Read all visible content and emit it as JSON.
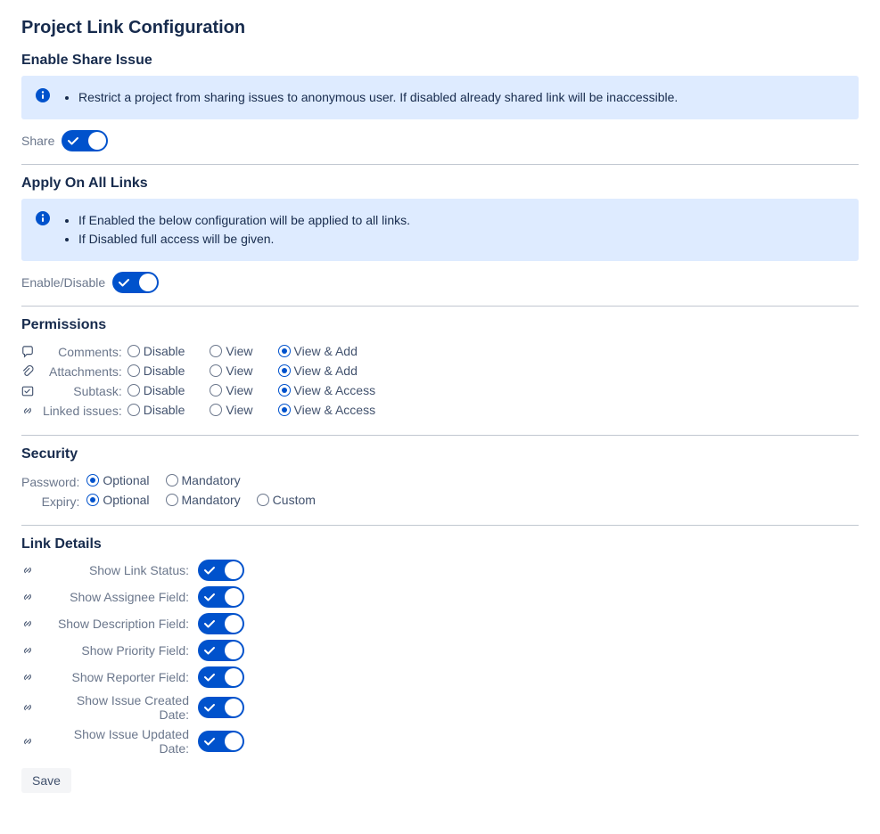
{
  "title": "Project Link Configuration",
  "colors": {
    "brand": "#0052cc",
    "info_bg": "#deebff",
    "text": "#172b4d",
    "muted": "#6b778c",
    "rule": "#c1c7d0",
    "save_bg": "#f4f5f7"
  },
  "enable_share": {
    "heading": "Enable Share Issue",
    "info": [
      "Restrict a project from sharing issues to anonymous user. If disabled already shared link will be inaccessible."
    ],
    "toggle_label": "Share",
    "toggle_on": true
  },
  "apply_all": {
    "heading": "Apply On All Links",
    "info": [
      "If Enabled the below configuration will be applied to all links.",
      "If Disabled full access will be given."
    ],
    "toggle_label": "Enable/Disable",
    "toggle_on": true
  },
  "permissions": {
    "heading": "Permissions",
    "option_labels": {
      "disable": "Disable",
      "view": "View",
      "view_add": "View & Add",
      "view_access": "View & Access"
    },
    "rows": [
      {
        "key": "comments",
        "icon": "comment",
        "label": "Comments:",
        "options": [
          "disable",
          "view",
          "view_add"
        ],
        "selected": "view_add"
      },
      {
        "key": "attachments",
        "icon": "attachment",
        "label": "Attachments:",
        "options": [
          "disable",
          "view",
          "view_add"
        ],
        "selected": "view_add"
      },
      {
        "key": "subtask",
        "icon": "subtask",
        "label": "Subtask:",
        "options": [
          "disable",
          "view",
          "view_access"
        ],
        "selected": "view_access"
      },
      {
        "key": "linked",
        "icon": "link",
        "label": "Linked issues:",
        "options": [
          "disable",
          "view",
          "view_access"
        ],
        "selected": "view_access"
      }
    ]
  },
  "security": {
    "heading": "Security",
    "rows": [
      {
        "key": "password",
        "label": "Password:",
        "options": [
          {
            "key": "optional",
            "label": "Optional"
          },
          {
            "key": "mandatory",
            "label": "Mandatory"
          }
        ],
        "selected": "optional"
      },
      {
        "key": "expiry",
        "label": "Expiry:",
        "options": [
          {
            "key": "optional",
            "label": "Optional"
          },
          {
            "key": "mandatory",
            "label": "Mandatory"
          },
          {
            "key": "custom",
            "label": "Custom"
          }
        ],
        "selected": "optional"
      }
    ]
  },
  "link_details": {
    "heading": "Link Details",
    "rows": [
      {
        "key": "status",
        "label": "Show Link Status:",
        "on": true
      },
      {
        "key": "assignee",
        "label": "Show Assignee Field:",
        "on": true
      },
      {
        "key": "description",
        "label": "Show Description Field:",
        "on": true
      },
      {
        "key": "priority",
        "label": "Show Priority Field:",
        "on": true
      },
      {
        "key": "reporter",
        "label": "Show Reporter Field:",
        "on": true
      },
      {
        "key": "created",
        "label": "Show Issue Created Date:",
        "on": true
      },
      {
        "key": "updated",
        "label": "Show Issue Updated Date:",
        "on": true
      }
    ]
  },
  "save_label": "Save"
}
